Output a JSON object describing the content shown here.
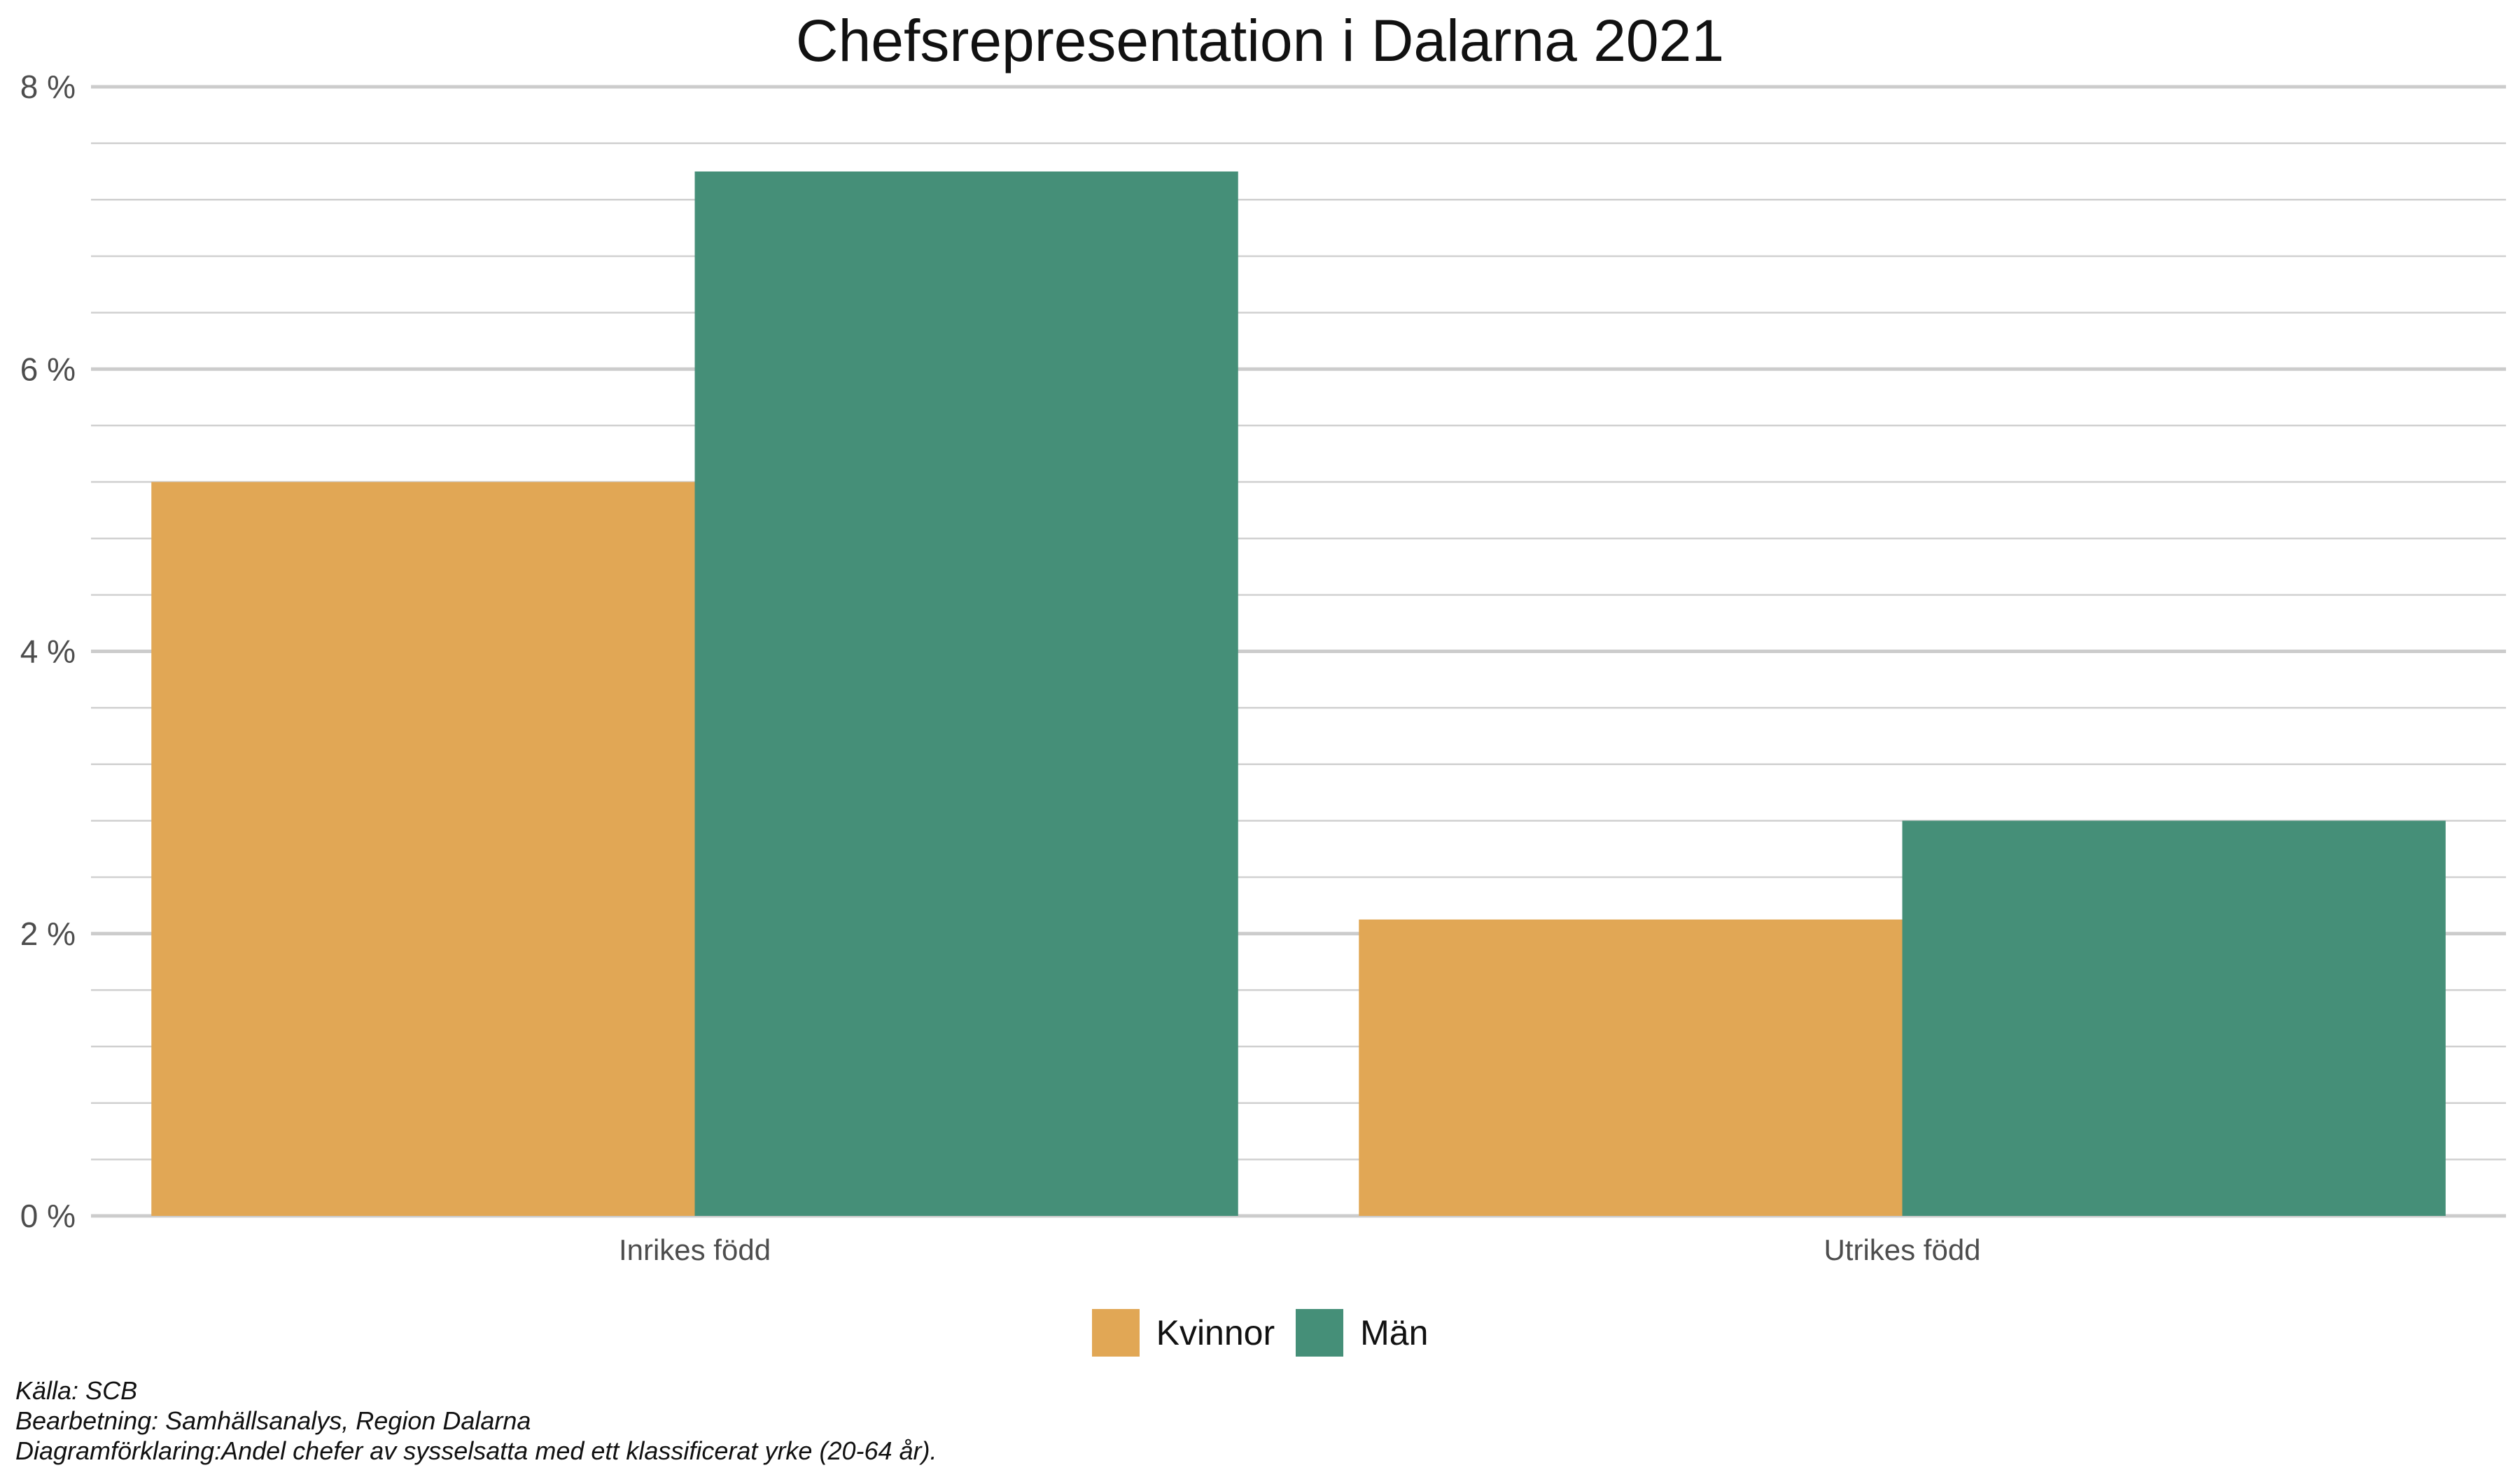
{
  "chart_data": {
    "type": "bar",
    "title": "Chefsrepresentation i Dalarna 2021",
    "categories": [
      "Inrikes född",
      "Utrikes född"
    ],
    "series": [
      {
        "name": "Kvinnor",
        "values": [
          5.2,
          2.1
        ],
        "color": "#E1A755"
      },
      {
        "name": "Män",
        "values": [
          7.4,
          2.8
        ],
        "color": "#458F78"
      }
    ],
    "ylim": [
      0,
      8
    ],
    "yticks": [
      "0 %",
      "2 %",
      "4 %",
      "6 %",
      "8 %"
    ],
    "ytick_values": [
      0,
      2,
      4,
      6,
      8
    ],
    "minor_grid_step": 0.4,
    "grid": true,
    "legend_position": "bottom",
    "xlabel": "",
    "ylabel": ""
  },
  "notes": {
    "source": "Källa: SCB",
    "processing": "Bearbetning: Samhällsanalys, Region Dalarna",
    "explanation": "Diagramförklaring:Andel chefer av sysselsatta med ett klassificerat yrke (20-64 år)."
  }
}
